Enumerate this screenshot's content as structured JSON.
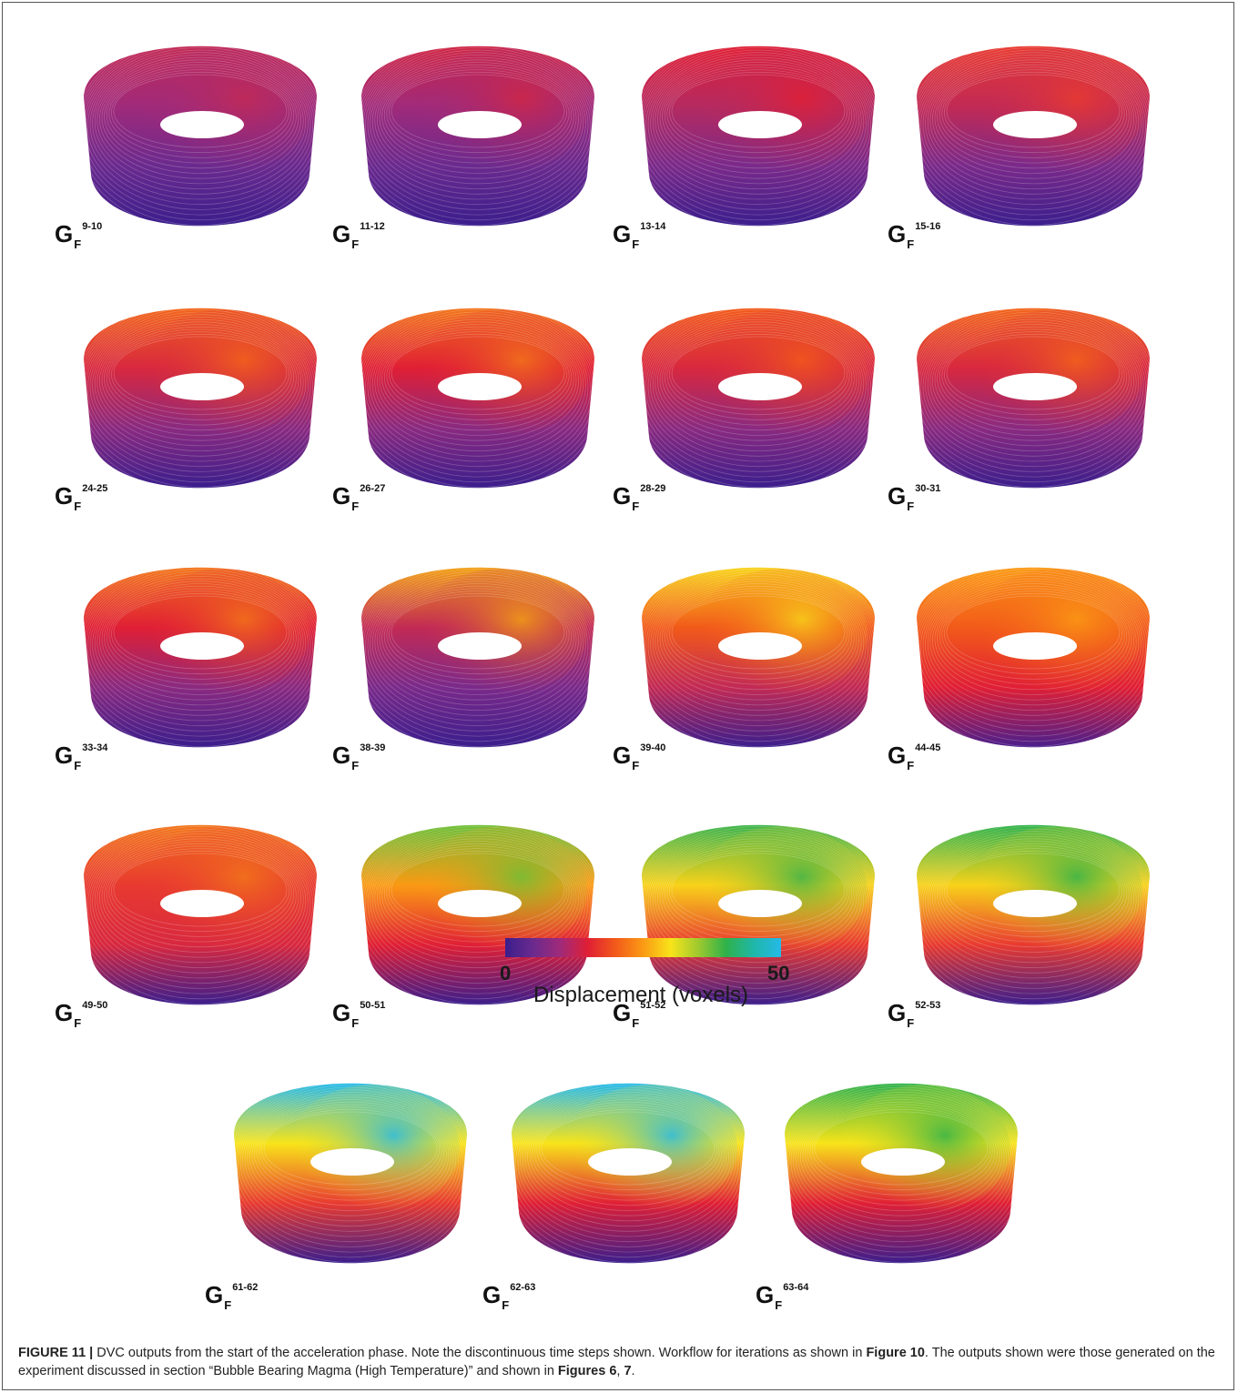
{
  "panels": [
    {
      "label": "G",
      "sub": "F",
      "sup": "9-10"
    },
    {
      "label": "G",
      "sub": "F",
      "sup": "11-12"
    },
    {
      "label": "G",
      "sub": "F",
      "sup": "13-14"
    },
    {
      "label": "G",
      "sub": "F",
      "sup": "15-16"
    },
    {
      "label": "G",
      "sub": "F",
      "sup": "24-25"
    },
    {
      "label": "G",
      "sub": "F",
      "sup": "26-27"
    },
    {
      "label": "G",
      "sub": "F",
      "sup": "28-29"
    },
    {
      "label": "G",
      "sub": "F",
      "sup": "30-31"
    },
    {
      "label": "G",
      "sub": "F",
      "sup": "33-34"
    },
    {
      "label": "G",
      "sub": "F",
      "sup": "38-39"
    },
    {
      "label": "G",
      "sub": "F",
      "sup": "39-40"
    },
    {
      "label": "G",
      "sub": "F",
      "sup": "44-45"
    },
    {
      "label": "G",
      "sub": "F",
      "sup": "49-50"
    },
    {
      "label": "G",
      "sub": "F",
      "sup": "50-51"
    },
    {
      "label": "G",
      "sub": "F",
      "sup": "51-52"
    },
    {
      "label": "G",
      "sub": "F",
      "sup": "52-53"
    },
    {
      "label": "G",
      "sub": "F",
      "sup": "61-62"
    },
    {
      "label": "G",
      "sub": "F",
      "sup": "62-63"
    },
    {
      "label": "G",
      "sub": "F",
      "sup": "63-64"
    }
  ],
  "colorbar": {
    "min": "0",
    "max": "50",
    "label": "Displacement (voxels)",
    "colors": [
      "#3b1e8c",
      "#6a2a8e",
      "#a02a7a",
      "#e01f35",
      "#f25a1a",
      "#fb9a14",
      "#f8e41a",
      "#9ec92e",
      "#2fb24a",
      "#1fb7a8",
      "#25b9e8"
    ]
  },
  "caption": {
    "lead": "FIGURE 11 |",
    "t1": " DVC outputs from the start of the acceleration phase. Note the discontinuous time steps shown. Workflow for iterations as shown in ",
    "ref1": "Figure 10",
    "t2": ". The outputs shown were those generated on the experiment discussed in section “Bubble Bearing Magma (High Temperature)” and shown in ",
    "ref2": "Figures 6",
    "t3": ", ",
    "ref3": "7",
    "t4": "."
  }
}
